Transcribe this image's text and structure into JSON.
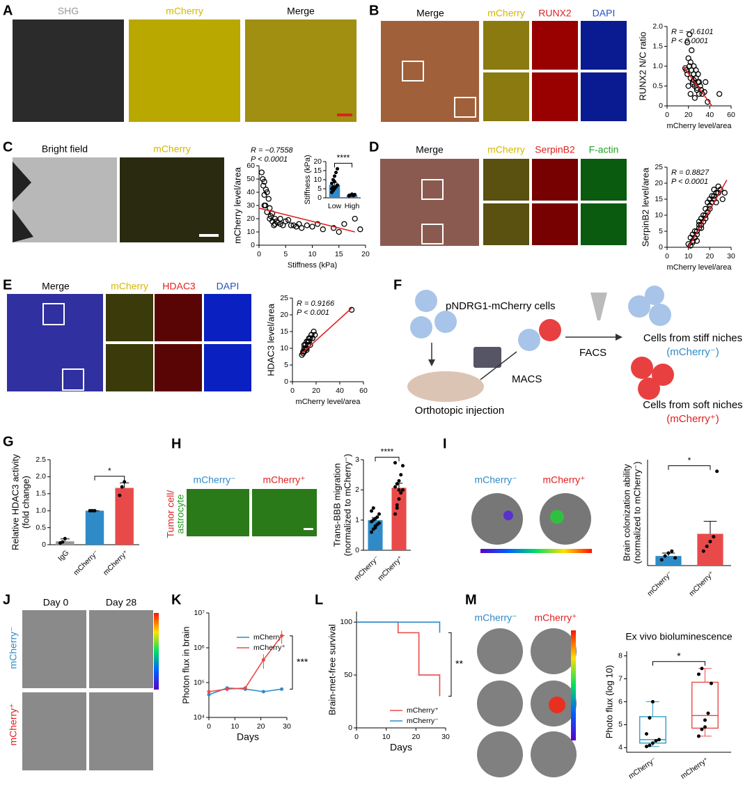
{
  "figure": {
    "panel_letters": [
      "A",
      "B",
      "C",
      "D",
      "E",
      "F",
      "G",
      "H",
      "I",
      "J",
      "K",
      "L",
      "M"
    ],
    "A": {
      "images": [
        "SHG",
        "mCherry",
        "Merge"
      ]
    },
    "B": {
      "images": [
        "Merge",
        "mCherry",
        "RUNX2",
        "DAPI"
      ]
    },
    "C": {
      "images": [
        "Bright field",
        "mCherry"
      ]
    },
    "D": {
      "images": [
        "Merge",
        "mCherry",
        "SerpinB2",
        "F-actin"
      ]
    },
    "E": {
      "images": [
        "Merge",
        "mCherry",
        "HDAC3",
        "DAPI"
      ]
    },
    "F": {
      "cells": "pNDRG1-mCherry cells",
      "injection": "Orthotopic injection",
      "macs": "MACS",
      "facs": "FACS",
      "stiff": "Cells from stiff niches",
      "stiff_tag": "(mCherry⁻)",
      "soft": "Cells from soft niches",
      "soft_tag": "(mCherry⁺)"
    },
    "H": {
      "images": [
        "mCherry⁻",
        "mCherry⁺"
      ],
      "side": [
        "Tumor cell/",
        "astrocyte"
      ]
    },
    "I": {
      "images": [
        "mCherry⁻",
        "mCherry⁺"
      ]
    },
    "J": {
      "columns": [
        "Day 0",
        "Day 28"
      ],
      "rows": [
        "mCherry⁻",
        "mCherry⁺"
      ]
    },
    "M": {
      "columns": [
        "mCherry⁻",
        "mCherry⁺"
      ]
    }
  },
  "chart_data": [
    {
      "type": "scatter",
      "x_label": "mCherry level/area",
      "y_label": "RUNX2 N/C ratio",
      "annotations": [
        "R = −0.6101",
        "P < 0.0001"
      ],
      "x": [
        18,
        19,
        20,
        21,
        22,
        23,
        24,
        25,
        26,
        27,
        28,
        29,
        30,
        31,
        32,
        19,
        21,
        23,
        25,
        27,
        29,
        33,
        35,
        20,
        22,
        24,
        26,
        28,
        30,
        36,
        38,
        49,
        17,
        22,
        25
      ],
      "values": [
        0.9,
        0.8,
        1.2,
        1.0,
        0.7,
        0.9,
        0.6,
        0.8,
        0.5,
        0.7,
        0.4,
        0.6,
        0.3,
        0.5,
        0.4,
        1.6,
        1.8,
        1.4,
        1.0,
        0.9,
        0.8,
        0.3,
        0.35,
        0.5,
        0.3,
        0.55,
        0.2,
        0.45,
        0.6,
        0.6,
        0.1,
        0.3,
        0.95,
        1.1,
        0.65
      ],
      "color": "#000000",
      "fit": {
        "x": [
          15,
          42
        ],
        "values": [
          1.0,
          0
        ],
        "color": "#e02020"
      },
      "xlim": [
        0,
        60
      ],
      "xticks": [
        0,
        20,
        40,
        60
      ],
      "ylim": [
        0,
        2
      ],
      "yticks": [
        0,
        0.5,
        {
          "value": 1,
          "label": "1.0"
        },
        1.5,
        {
          "value": 2,
          "label": "2.0"
        }
      ]
    },
    {
      "type": "scatter",
      "x_label": "Stiffness (kPa)",
      "y_label": "mCherry level/area",
      "annotations": [
        "R = −0.7558",
        "P < 0.0001"
      ],
      "x": [
        0.5,
        0.8,
        1,
        1.2,
        1.5,
        1.8,
        2,
        2.2,
        2.5,
        3,
        3.5,
        4,
        5,
        6,
        7,
        8,
        9,
        10,
        11,
        12,
        14,
        15,
        16,
        18,
        1,
        1.5,
        2,
        2.5,
        3,
        4,
        1,
        0.7,
        1.3,
        2.8,
        3.3,
        4.5,
        5.5,
        6.5,
        7.5,
        19
      ],
      "values": [
        55,
        45,
        38,
        30,
        25,
        35,
        20,
        22,
        18,
        16,
        17,
        20,
        18,
        15,
        14,
        13,
        15,
        14,
        16,
        12,
        13,
        10,
        16,
        20,
        48,
        40,
        28,
        24,
        20,
        16,
        30,
        50,
        42,
        15,
        18,
        15,
        19,
        15,
        16,
        12
      ],
      "color": "#000000",
      "fit": {
        "x": [
          0,
          18
        ],
        "values": [
          28,
          10
        ],
        "color": "#e02020"
      },
      "xlim": [
        0,
        20
      ],
      "xticks": [
        0,
        5,
        10,
        15,
        20
      ],
      "ylim": [
        0,
        60
      ],
      "yticks": [
        0,
        10,
        20,
        30,
        40,
        50,
        60
      ]
    },
    {
      "type": "bar",
      "y_label": "Stiffness (kPa)",
      "categories": [
        "Low",
        "High"
      ],
      "values": [
        7.2,
        1.5
      ],
      "errors": [
        1.2,
        0.3
      ],
      "colors": [
        "#2e8bc8",
        "#2e8bc8"
      ],
      "points": [
        [
          3,
          4,
          5,
          6,
          7,
          8,
          10,
          12,
          14,
          16,
          5,
          6,
          9
        ],
        [
          1,
          1.5,
          2,
          1.2,
          1.8,
          1.4
        ]
      ],
      "significance": "****",
      "ylim": [
        0,
        20
      ],
      "yticks": [
        0,
        5,
        10,
        15,
        20
      ]
    },
    {
      "type": "scatter",
      "x_label": "mCherry level/area",
      "y_label": "SerpinB2 level/area",
      "annotations": [
        "R = 0.8827",
        "P < 0.0001"
      ],
      "x": [
        10,
        11,
        12,
        12,
        13,
        13,
        14,
        14,
        15,
        15,
        16,
        16,
        17,
        17,
        18,
        18,
        19,
        19,
        20,
        20,
        21,
        21,
        22,
        22,
        23,
        23,
        24,
        25,
        26,
        27,
        11,
        12,
        14,
        16,
        18,
        20,
        22,
        24,
        13,
        15
      ],
      "values": [
        1,
        3,
        2,
        4,
        3,
        5,
        5,
        2,
        6,
        8,
        7,
        9,
        10,
        8,
        12,
        9,
        14,
        11,
        15,
        13,
        16,
        14,
        15,
        18,
        17,
        14,
        19,
        18,
        15,
        17,
        0.5,
        1.5,
        4,
        6,
        10,
        12,
        16,
        17,
        3,
        7
      ],
      "color": "#000000",
      "fit": {
        "x": [
          10,
          28
        ],
        "values": [
          0,
          21
        ],
        "color": "#e02020"
      },
      "xlim": [
        0,
        30
      ],
      "xticks": [
        0,
        10,
        20,
        30
      ],
      "ylim": [
        0,
        25
      ],
      "yticks": [
        0,
        5,
        10,
        15,
        20,
        25
      ]
    },
    {
      "type": "scatter",
      "x_label": "mCherry level/area",
      "y_label": "HDAC3 level/area",
      "annotations": [
        "R = 0.9166",
        "P < 0.001"
      ],
      "x": [
        8,
        9,
        10,
        10,
        11,
        12,
        12,
        13,
        14,
        15,
        16,
        17,
        18,
        9,
        11,
        13,
        15,
        17,
        19,
        10,
        12,
        14,
        16,
        50
      ],
      "values": [
        8,
        9,
        10,
        9,
        11,
        10,
        12,
        11,
        12,
        13,
        14,
        13,
        15,
        8.5,
        10,
        12,
        11,
        13,
        14,
        11,
        9.5,
        13,
        14,
        21.5
      ],
      "color": "#000000",
      "fit": {
        "x": [
          8,
          50
        ],
        "values": [
          8.5,
          22
        ],
        "color": "#e02020"
      },
      "xlim": [
        0,
        60
      ],
      "xticks": [
        0,
        20,
        40,
        60
      ],
      "ylim": [
        0,
        25
      ],
      "yticks": [
        0,
        5,
        10,
        15,
        20,
        25
      ]
    },
    {
      "type": "bar",
      "y_label": [
        "Relative HDAC3 activity",
        "(fold change)"
      ],
      "categories": [
        "IgG",
        "mCherry⁻",
        "mCherry⁺"
      ],
      "values": [
        0.1,
        1.0,
        1.67
      ],
      "errors": [
        0.07,
        0,
        0.15
      ],
      "colors": [
        "#9a9a9a",
        "#2e8bc8",
        "#e84a4a"
      ],
      "points": [
        [
          0.05,
          0.08,
          0.18
        ],
        [
          1,
          1,
          1
        ],
        [
          1.45,
          1.7,
          1.85
        ]
      ],
      "significance": "*",
      "ylim": [
        0,
        2.5
      ],
      "yticks": [
        0,
        0.5,
        {
          "value": 1,
          "label": "1.0"
        },
        1.5,
        {
          "value": 2,
          "label": "2.0"
        },
        2.5
      ]
    },
    {
      "type": "bar",
      "y_label": [
        "Trans-BBB migration",
        "(normalized to mCherry⁻)"
      ],
      "categories": [
        "mCherry⁻",
        "mCherry⁺"
      ],
      "values": [
        1.0,
        2.07
      ],
      "errors": [
        0.08,
        0.15
      ],
      "colors": [
        "#2e8bc8",
        "#e84a4a"
      ],
      "points": [
        [
          0.6,
          0.7,
          0.8,
          0.85,
          0.9,
          0.95,
          1.0,
          1.05,
          1.1,
          1.2,
          1.3,
          1.4,
          0.75
        ],
        [
          1.2,
          1.5,
          1.7,
          1.9,
          2.0,
          2.1,
          2.2,
          2.3,
          2.5,
          2.8,
          2.9,
          1.4,
          2.0
        ]
      ],
      "significance": "****",
      "ylim": [
        0,
        3
      ],
      "yticks": [
        0,
        1,
        2,
        3
      ]
    },
    {
      "type": "bar",
      "y_label": [
        "Brain colonization ability",
        "(normalized to mCherry⁻)"
      ],
      "categories": [
        "mCherry⁻",
        "mCherry⁺"
      ],
      "values": [
        1.0,
        3.3
      ],
      "errors": [
        0.3,
        1.3
      ],
      "colors": [
        "#2e8bc8",
        "#e84a4a"
      ],
      "points": [
        [
          0.6,
          1,
          1.3,
          1.5,
          0.8
        ],
        [
          1.5,
          2,
          2.5,
          3,
          9.8
        ]
      ],
      "significance": "*",
      "ylim": [
        0,
        11
      ]
    },
    {
      "type": "line",
      "log_y": true,
      "x_label": "Days",
      "y_label": "Photon flux in brain",
      "x": [
        0,
        7,
        14,
        21,
        28
      ],
      "series": [
        {
          "name": "mCherry⁻",
          "color": "#2e8bc8",
          "values": [
            45000,
            70000,
            65000,
            55000,
            65000
          ],
          "errors": [
            4000,
            5000,
            5000,
            4000,
            5000
          ]
        },
        {
          "name": "mCherry⁺",
          "color": "#e84a4a",
          "values": [
            55000,
            65000,
            70000,
            450000,
            2200000
          ],
          "errors": [
            5000,
            8000,
            8000,
            200000,
            900000
          ]
        }
      ],
      "significance": "***",
      "xlim": [
        0,
        30
      ],
      "xticks": [
        0,
        10,
        20,
        30
      ],
      "ylim": [
        10000,
        10000000
      ],
      "yticks": [
        {
          "value": 10000,
          "label": "10⁴"
        },
        {
          "value": 100000,
          "label": "10⁵"
        },
        {
          "value": 1000000,
          "label": "10⁶"
        },
        {
          "value": 10000000,
          "label": "10⁷"
        }
      ]
    },
    {
      "type": "step",
      "x_label": "Days",
      "y_label": "Brain-met-free survival",
      "series": [
        {
          "name": "mCherry⁺",
          "color": "#e84a4a",
          "x": [
            0,
            14,
            14,
            21,
            21,
            28,
            28
          ],
          "values": [
            100,
            100,
            90,
            90,
            50,
            50,
            30
          ]
        },
        {
          "name": "mCherry⁻",
          "color": "#2e8bc8",
          "x": [
            0,
            28,
            28
          ],
          "values": [
            100,
            100,
            90
          ]
        }
      ],
      "significance": "**",
      "xlim": [
        0,
        30
      ],
      "xticks": [
        0,
        10,
        20,
        30
      ],
      "ylim": [
        0,
        110
      ],
      "yticks": [
        0,
        50,
        100
      ]
    },
    {
      "type": "box",
      "title": "Ex vivo bioluminescence",
      "y_label": "Photo flux (log 10)",
      "categories": [
        "mCherry⁻",
        "mCherry⁺"
      ],
      "colors": [
        "#2e9ec8",
        "#e84a4a"
      ],
      "boxes": [
        {
          "min": 4.05,
          "q1": 4.2,
          "median": 4.35,
          "q3": 5.35,
          "max": 6.0,
          "points": [
            4.05,
            4.1,
            4.2,
            4.3,
            4.35,
            4.6,
            5.3,
            6.0
          ]
        },
        {
          "min": 4.5,
          "q1": 4.85,
          "median": 5.4,
          "q3": 6.85,
          "max": 7.45,
          "points": [
            4.5,
            4.8,
            5.2,
            5.5,
            6.8,
            7.2,
            7.45,
            4.9
          ]
        }
      ],
      "significance": "*",
      "ylim": [
        3.8,
        8.2
      ],
      "yticks": [
        4,
        5,
        6,
        7,
        8
      ]
    }
  ]
}
